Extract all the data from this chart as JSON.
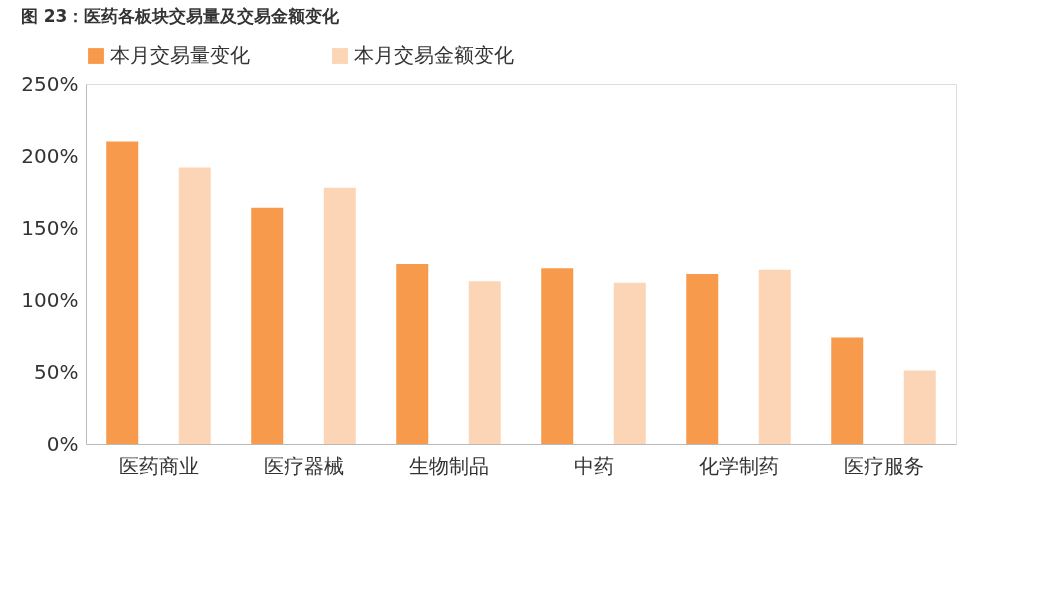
{
  "chart_data": {
    "type": "bar",
    "title": "图 23：医药各板块交易量及交易金额变化",
    "categories": [
      "医药商业",
      "医疗器械",
      "生物制品",
      "中药",
      "化学制药",
      "医疗服务"
    ],
    "series": [
      {
        "name": "本月交易量变化",
        "color": "#f79a4c",
        "values": [
          210,
          164,
          125,
          122,
          118,
          74
        ]
      },
      {
        "name": "本月交易金额变化",
        "color": "#fbd5b5",
        "values": [
          192,
          178,
          113,
          112,
          121,
          51
        ]
      }
    ],
    "ylim": [
      0,
      250
    ],
    "yticks": [
      {
        "value": 0,
        "label": "0%"
      },
      {
        "value": 50,
        "label": "50%"
      },
      {
        "value": 100,
        "label": "100%"
      },
      {
        "value": 150,
        "label": "150%"
      },
      {
        "value": 200,
        "label": "200%"
      },
      {
        "value": 250,
        "label": "250%"
      }
    ],
    "legend": "top",
    "grid": false
  }
}
